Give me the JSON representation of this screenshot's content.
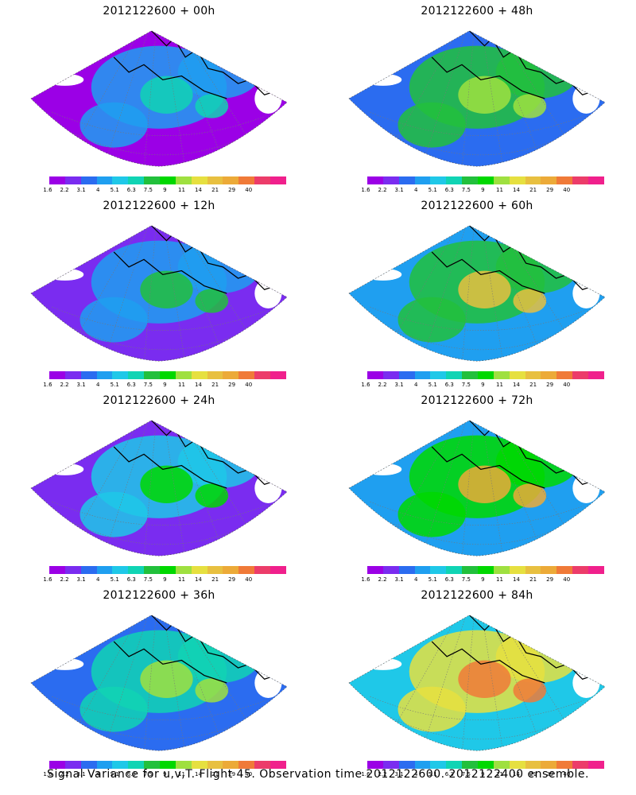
{
  "panels": [
    {
      "title": "2012122600 + 00h",
      "intensity": 0.15
    },
    {
      "title": "2012122600 + 48h",
      "intensity": 0.45
    },
    {
      "title": "2012122600 + 12h",
      "intensity": 0.22
    },
    {
      "title": "2012122600 + 60h",
      "intensity": 0.55
    },
    {
      "title": "2012122600 + 24h",
      "intensity": 0.3
    },
    {
      "title": "2012122600 + 72h",
      "intensity": 0.65
    },
    {
      "title": "2012122600 + 36h",
      "intensity": 0.38
    },
    {
      "title": "2012122600 + 84h",
      "intensity": 0.78
    }
  ],
  "colorbar": {
    "labels": [
      "1.6",
      "2.2",
      "3.1",
      "4",
      "5.1",
      "6.3",
      "7.5",
      "9",
      "11",
      "14",
      "21",
      "29",
      "40"
    ],
    "colors": [
      "#9b00e6",
      "#7a2cf0",
      "#2b6cf0",
      "#1f9ff0",
      "#1fc8e8",
      "#10d4b4",
      "#22c03c",
      "#00d800",
      "#9fe040",
      "#e6e040",
      "#e8c040",
      "#ecaa38",
      "#f07a38",
      "#ec3c6a",
      "#f0208c"
    ]
  },
  "caption": "Signal Variance for u,v,T. Flight 45. Observation time 2012122600. 2012122400 ensemble."
}
